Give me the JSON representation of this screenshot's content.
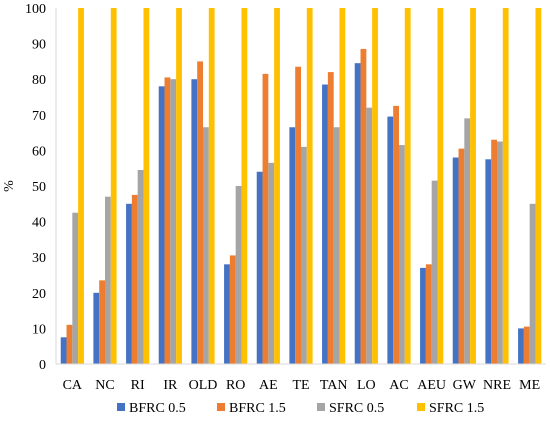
{
  "chart_data": {
    "type": "bar",
    "title": "",
    "xlabel": "",
    "ylabel": "%",
    "ylim": [
      0,
      100
    ],
    "yticks": [
      0,
      10,
      20,
      30,
      40,
      50,
      60,
      70,
      80,
      90,
      100
    ],
    "grid": false,
    "legend_position": "bottom",
    "categories": [
      "CA",
      "NC",
      "RI",
      "IR",
      "OLD",
      "RO",
      "AE",
      "TE",
      "TAN",
      "LO",
      "AC",
      "AEU",
      "GW",
      "NRE",
      "ME"
    ],
    "series": [
      {
        "name": "BFRC 0.5",
        "color": "#4472C4",
        "values": [
          7.5,
          20,
          45,
          78,
          80,
          28,
          54,
          66.5,
          78.5,
          84.5,
          69.5,
          27,
          58,
          57.5,
          10
        ]
      },
      {
        "name": "BFRC 1.5",
        "color": "#ED7D31",
        "values": [
          11,
          23.5,
          47.5,
          80.5,
          85,
          30.5,
          81.5,
          83.5,
          82,
          88.5,
          72.5,
          28,
          60.5,
          63,
          10.5
        ]
      },
      {
        "name": "SFRC 0.5",
        "color": "#A5A5A5",
        "values": [
          42.5,
          47,
          54.5,
          80,
          66.5,
          50,
          56.5,
          61,
          66.5,
          72,
          61.5,
          51.5,
          69,
          62.5,
          45
        ]
      },
      {
        "name": "SFRC 1.5",
        "color": "#FFC000",
        "values": [
          100,
          100,
          100,
          100,
          100,
          100,
          100,
          100,
          100,
          100,
          100,
          100,
          100,
          100,
          100
        ]
      }
    ]
  }
}
